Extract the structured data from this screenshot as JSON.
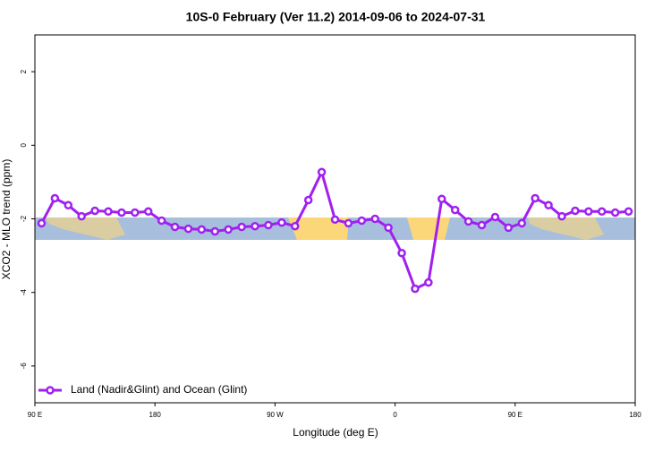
{
  "chart_data": {
    "type": "line",
    "title": "10S-0 February (Ver 11.2)   2014-09-06 to 2024-07-31",
    "xlabel": "Longitude (deg E)",
    "ylabel": "XCO2 - MLO trend (ppm)",
    "x": [
      95,
      105,
      115,
      125,
      135,
      145,
      155,
      165,
      175,
      185,
      195,
      205,
      215,
      225,
      235,
      245,
      255,
      265,
      275,
      285,
      295,
      305,
      315,
      325,
      335,
      345,
      355,
      365,
      375,
      385,
      395,
      405,
      415,
      425,
      435,
      445,
      455,
      465,
      475,
      485,
      495,
      505,
      515,
      525,
      535
    ],
    "series": [
      {
        "name": "Land (Nadir&Glint) and Ocean (Glint)",
        "color": "#a020f0",
        "values": [
          -2.12,
          -1.44,
          -1.63,
          -1.93,
          -1.78,
          -1.8,
          -1.83,
          -1.83,
          -1.8,
          -2.05,
          -2.22,
          -2.27,
          -2.29,
          -2.34,
          -2.29,
          -2.22,
          -2.2,
          -2.17,
          -2.1,
          -2.2,
          -1.49,
          -0.73,
          -2.02,
          -2.12,
          -2.05,
          -2.0,
          -2.24,
          -2.93,
          -3.9,
          -3.73,
          -1.46,
          -1.76,
          -2.07,
          -2.17,
          -1.95,
          -2.24,
          -2.12,
          -1.44,
          -1.63,
          -1.93,
          -1.78,
          -1.8,
          -1.8,
          -1.83,
          -1.8
        ]
      }
    ],
    "xlim": [
      90,
      540
    ],
    "xticks": [
      {
        "value": 90,
        "label": "90 E"
      },
      180,
      {
        "value": 270,
        "label": "90 W"
      },
      {
        "value": 360,
        "label": "0"
      },
      {
        "value": 450,
        "label": "90 E"
      },
      {
        "value": 540,
        "label": "180"
      }
    ],
    "ylim": [
      -7,
      3
    ],
    "yticks": [
      2,
      0,
      -2,
      -4,
      -6
    ],
    "legend": "bottom-left"
  }
}
